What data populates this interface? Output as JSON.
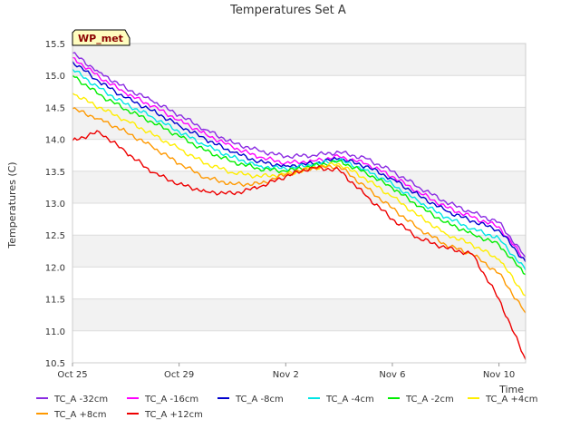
{
  "chart_data": {
    "type": "line",
    "title": "Temperatures Set A",
    "ylabel": "Temperatures (C)",
    "xlabel": "Time",
    "badge": "WP_met",
    "xlim": [
      "2023-10-25",
      "2023-11-11"
    ],
    "ylim": [
      10.5,
      15.5
    ],
    "x_ticks": [
      {
        "date": "2023-10-25",
        "label": "Oct 25"
      },
      {
        "date": "2023-10-29",
        "label": "Oct 29"
      },
      {
        "date": "2023-11-02",
        "label": "Nov 2"
      },
      {
        "date": "2023-11-06",
        "label": "Nov 6"
      },
      {
        "date": "2023-11-10",
        "label": "Nov 10"
      }
    ],
    "y_ticks": [
      "10.5",
      "11.0",
      "11.5",
      "12.0",
      "12.5",
      "13.0",
      "13.5",
      "14.0",
      "14.5",
      "15.0",
      "15.5"
    ],
    "grid": true,
    "legend_position": "bottom",
    "x": [
      "2023-10-25",
      "2023-10-26",
      "2023-10-27",
      "2023-10-28",
      "2023-10-29",
      "2023-10-30",
      "2023-10-31",
      "2023-11-01",
      "2023-11-02",
      "2023-11-03",
      "2023-11-04",
      "2023-11-05",
      "2023-11-06",
      "2023-11-07",
      "2023-11-08",
      "2023-11-09",
      "2023-11-10",
      "2023-11-11"
    ],
    "series": [
      {
        "name": "TC_A -32cm",
        "color": "#8a2be2",
        "values": [
          15.35,
          15.05,
          14.8,
          14.6,
          14.38,
          14.15,
          13.95,
          13.82,
          13.73,
          13.75,
          13.8,
          13.7,
          13.5,
          13.25,
          13.02,
          12.85,
          12.7,
          12.15
        ]
      },
      {
        "name": "TC_A -16cm",
        "color": "#ff00ff",
        "values": [
          15.28,
          14.98,
          14.72,
          14.52,
          14.3,
          14.08,
          13.88,
          13.72,
          13.63,
          13.66,
          13.73,
          13.62,
          13.42,
          13.17,
          12.94,
          12.78,
          12.63,
          12.1
        ]
      },
      {
        "name": "TC_A -8cm",
        "color": "#0000cd",
        "values": [
          15.22,
          14.9,
          14.65,
          14.45,
          14.22,
          14.0,
          13.8,
          13.65,
          13.58,
          13.62,
          13.7,
          13.58,
          13.38,
          13.12,
          12.88,
          12.72,
          12.58,
          12.08
        ]
      },
      {
        "name": "TC_A -4cm",
        "color": "#00e5e5",
        "values": [
          15.1,
          14.8,
          14.55,
          14.35,
          14.12,
          13.9,
          13.72,
          13.58,
          13.54,
          13.6,
          13.68,
          13.52,
          13.3,
          13.02,
          12.78,
          12.6,
          12.45,
          11.95
        ]
      },
      {
        "name": "TC_A -2cm",
        "color": "#00ee00",
        "values": [
          15.0,
          14.7,
          14.47,
          14.27,
          14.05,
          13.82,
          13.65,
          13.54,
          13.5,
          13.58,
          13.66,
          13.48,
          13.24,
          12.95,
          12.7,
          12.52,
          12.35,
          11.88
        ]
      },
      {
        "name": "TC_A +4cm",
        "color": "#ffee00",
        "values": [
          14.72,
          14.5,
          14.3,
          14.08,
          13.85,
          13.62,
          13.48,
          13.42,
          13.45,
          13.55,
          13.62,
          13.38,
          13.1,
          12.8,
          12.52,
          12.35,
          12.12,
          11.55
        ]
      },
      {
        "name": "TC_A +8cm",
        "color": "#ff9900",
        "values": [
          14.48,
          14.32,
          14.12,
          13.88,
          13.62,
          13.4,
          13.3,
          13.3,
          13.45,
          13.55,
          13.58,
          13.25,
          12.92,
          12.6,
          12.35,
          12.2,
          11.9,
          11.28
        ]
      },
      {
        "name": "TC_A +12cm",
        "color": "#ee0000",
        "values": [
          13.98,
          14.12,
          13.8,
          13.48,
          13.3,
          13.18,
          13.15,
          13.25,
          13.42,
          13.56,
          13.52,
          13.12,
          12.75,
          12.45,
          12.3,
          12.2,
          11.5,
          10.55
        ]
      }
    ]
  }
}
